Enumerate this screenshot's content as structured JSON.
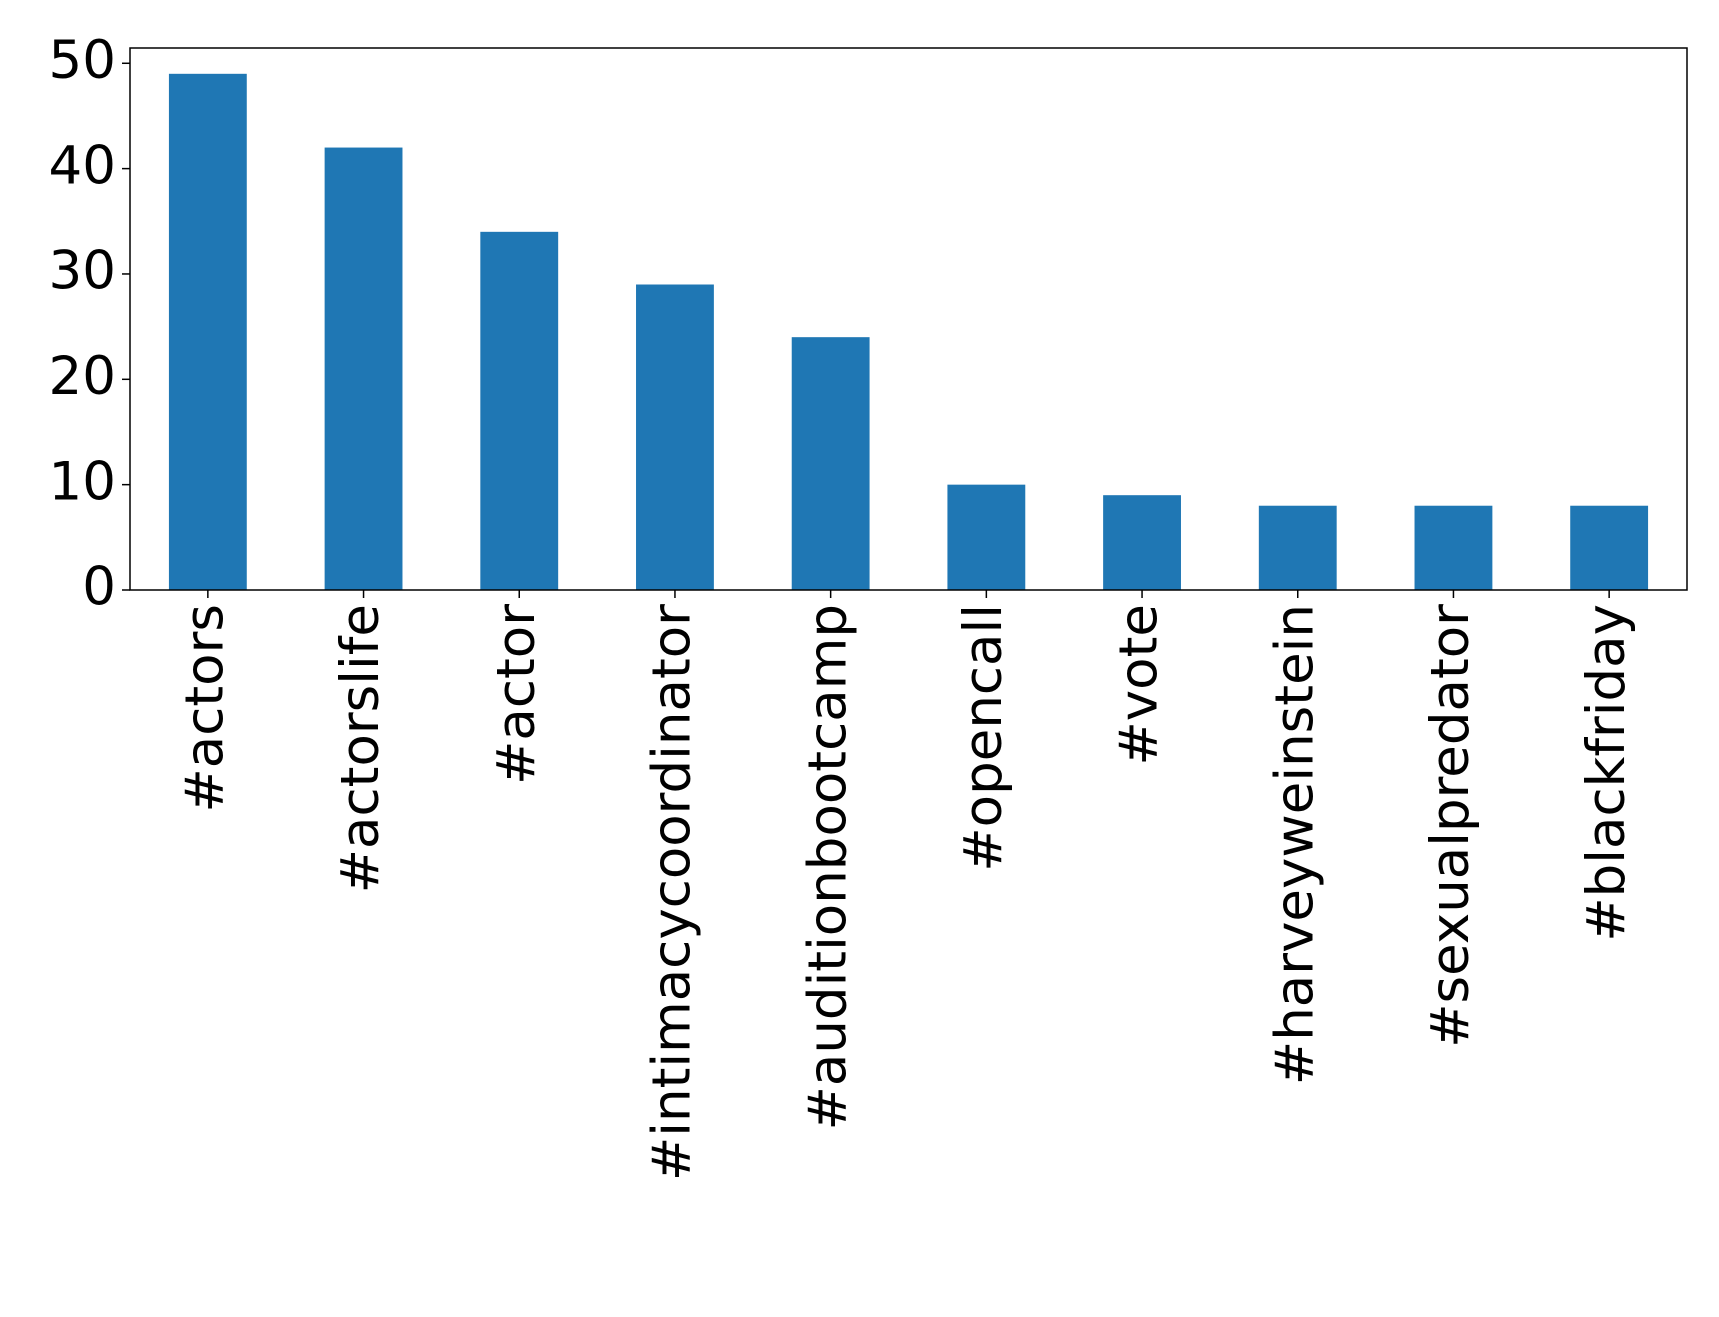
{
  "chart_data": {
    "type": "bar",
    "categories": [
      "#actors",
      "#actorslife",
      "#actor",
      "#intimacycoordinator",
      "#auditionbootcamp",
      "#opencall",
      "#vote",
      "#harveyweinstein",
      "#sexualpredator",
      "#blackfriday"
    ],
    "values": [
      49,
      42,
      34,
      29,
      24,
      10,
      9,
      8,
      8,
      8
    ],
    "color": "#1f77b4",
    "ylim": [
      0,
      51.45
    ],
    "yticks": [
      0,
      10,
      20,
      30,
      40,
      50
    ],
    "grid": false
  }
}
